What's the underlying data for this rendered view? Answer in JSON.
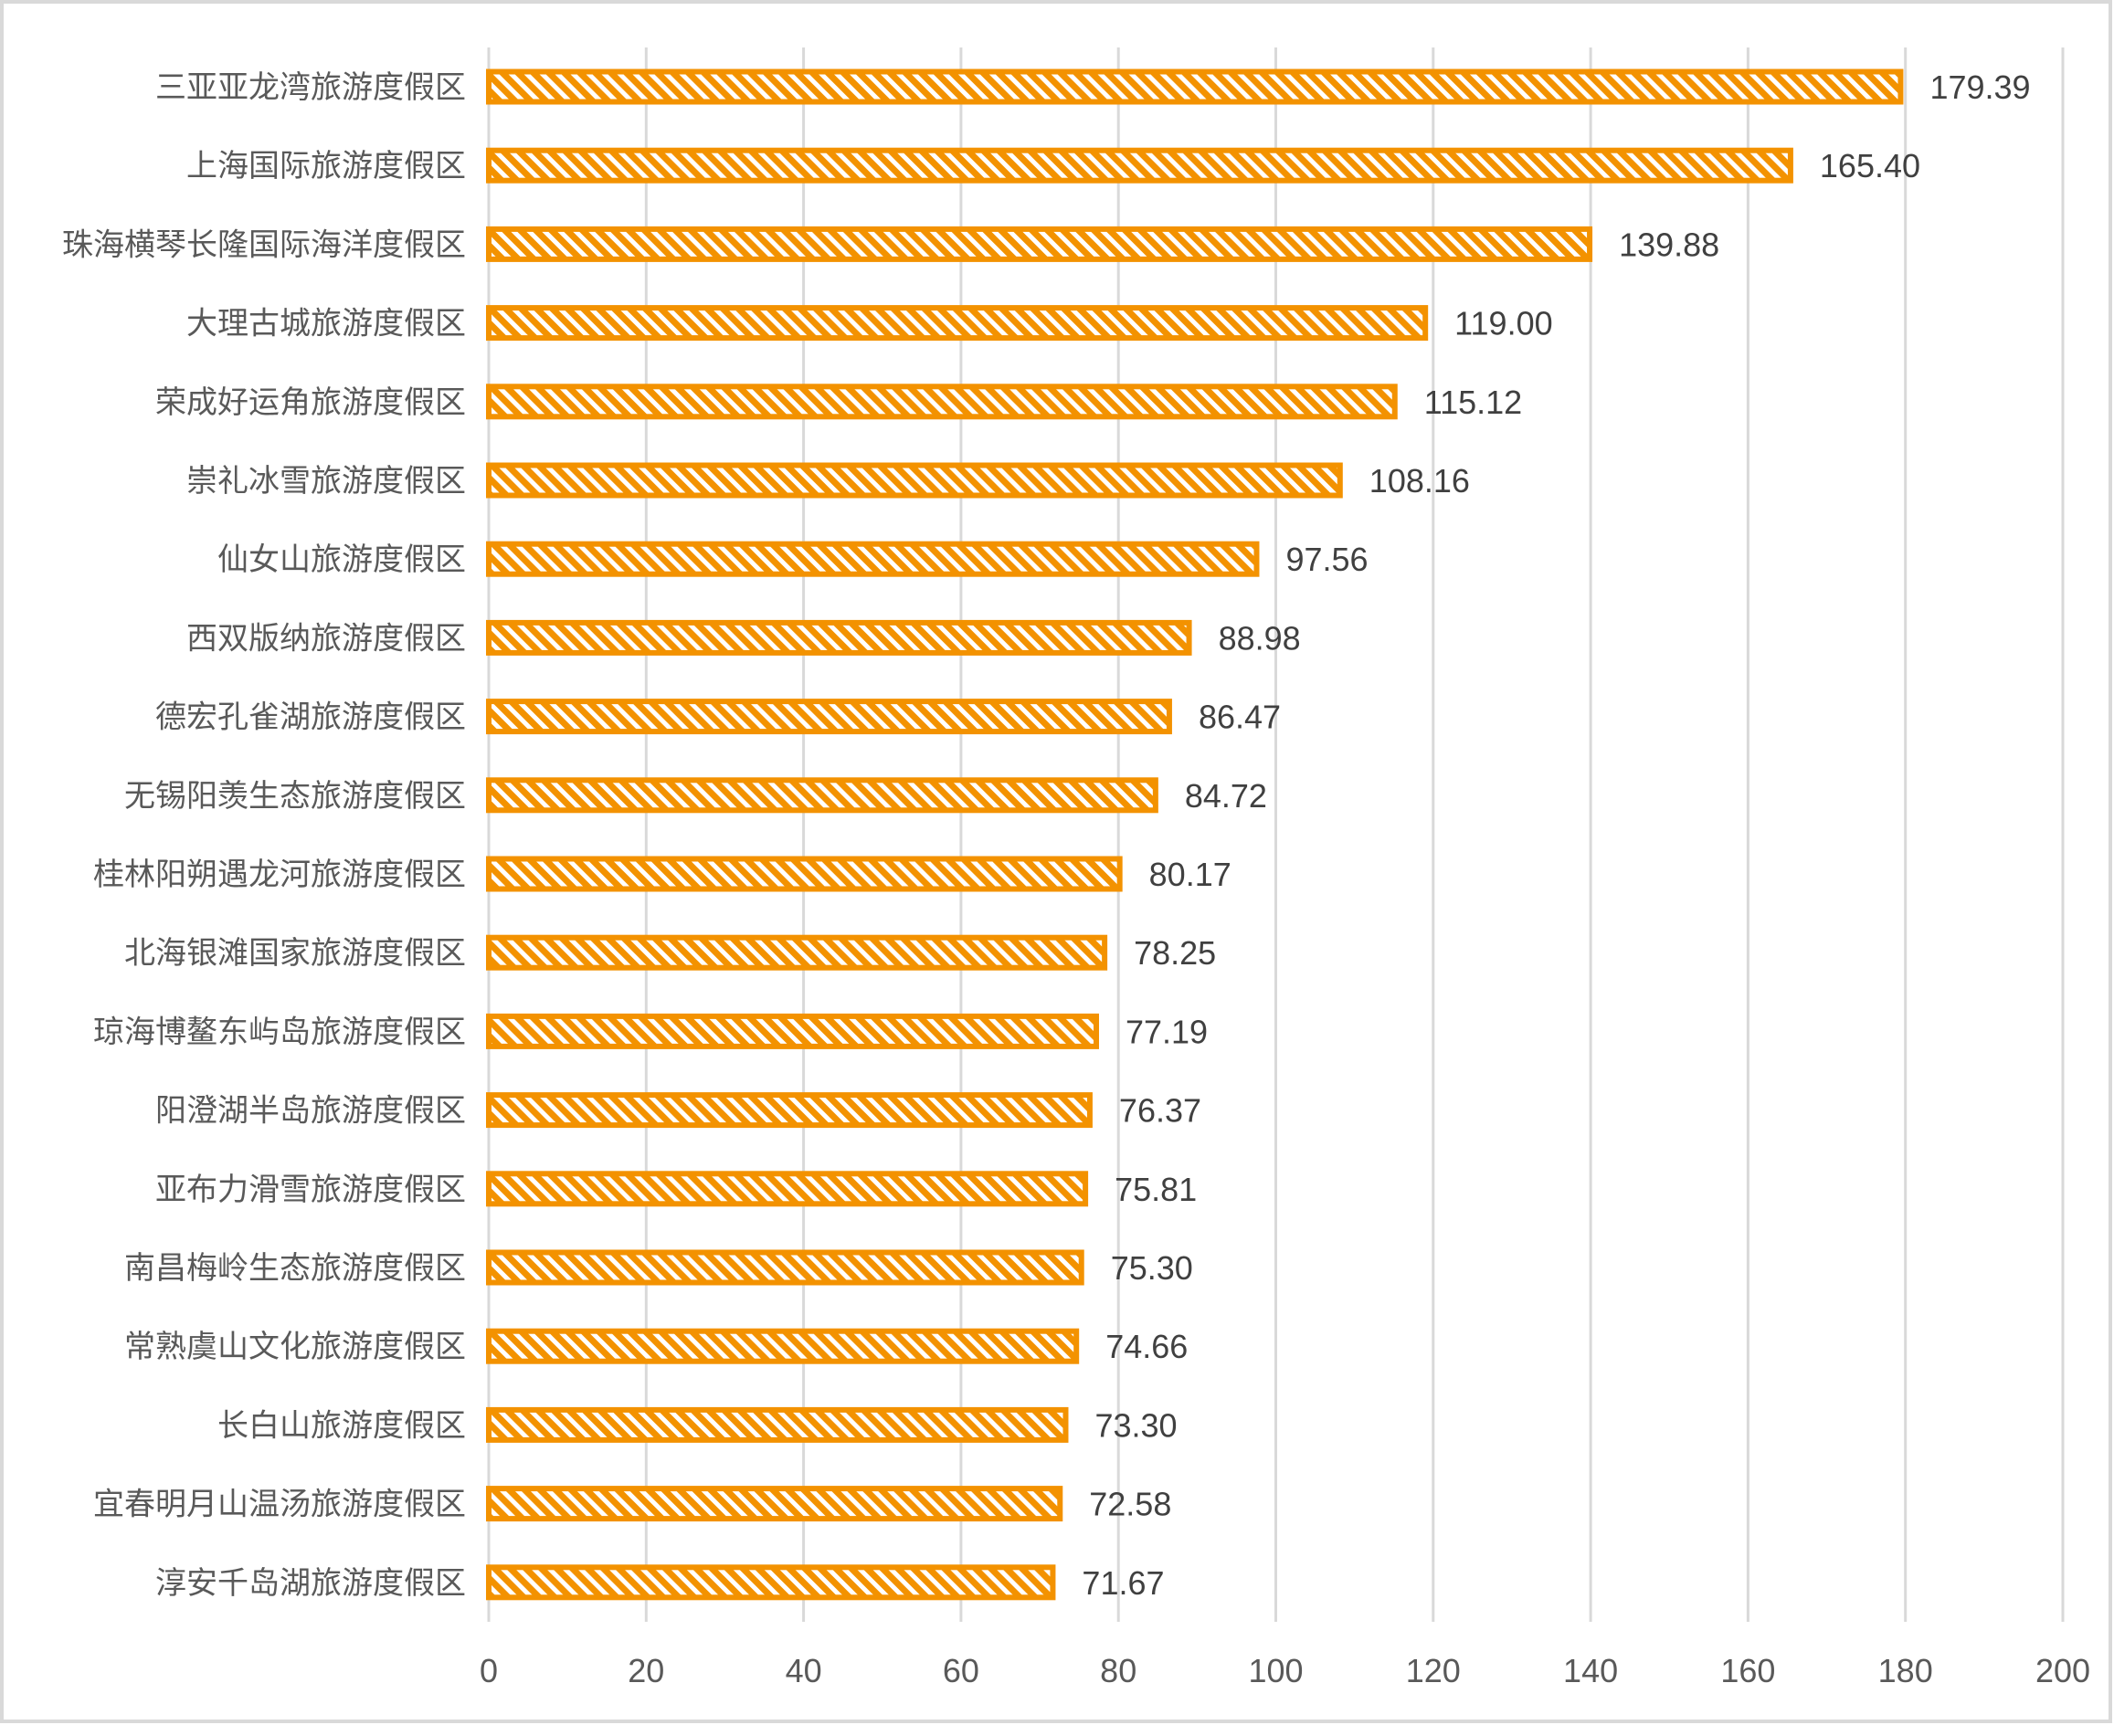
{
  "chart_data": {
    "type": "bar",
    "orientation": "horizontal",
    "categories": [
      "三亚亚龙湾旅游度假区",
      "上海国际旅游度假区",
      "珠海横琴长隆国际海洋度假区",
      "大理古城旅游度假区",
      "荣成好运角旅游度假区",
      "崇礼冰雪旅游度假区",
      "仙女山旅游度假区",
      "西双版纳旅游度假区",
      "德宏孔雀湖旅游度假区",
      "无锡阳羡生态旅游度假区",
      "桂林阳朔遇龙河旅游度假区",
      "北海银滩国家旅游度假区",
      "琼海博鳌东屿岛旅游度假区",
      "阳澄湖半岛旅游度假区",
      "亚布力滑雪旅游度假区",
      "南昌梅岭生态旅游度假区",
      "常熟虞山文化旅游度假区",
      "长白山旅游度假区",
      "宜春明月山温汤旅游度假区",
      "淳安千岛湖旅游度假区"
    ],
    "values": [
      179.39,
      165.4,
      139.88,
      119.0,
      115.12,
      108.16,
      97.56,
      88.98,
      86.47,
      84.72,
      80.17,
      78.25,
      77.19,
      76.37,
      75.81,
      75.3,
      74.66,
      73.3,
      72.58,
      71.67
    ],
    "data_labels": [
      "179.39",
      "165.40",
      "139.88",
      "119.00",
      "115.12",
      "108.16",
      "97.56",
      "88.98",
      "86.47",
      "84.72",
      "80.17",
      "78.25",
      "77.19",
      "76.37",
      "75.81",
      "75.30",
      "74.66",
      "73.30",
      "72.58",
      "71.67"
    ],
    "xlim": [
      0,
      200
    ],
    "x_ticks": [
      "0",
      "20",
      "40",
      "60",
      "80",
      "100",
      "120",
      "140",
      "160",
      "180",
      "200"
    ],
    "grid": "vertical",
    "bar_color": "#F39200",
    "bar_pattern": "diagonal-stripes-white",
    "title": "",
    "xlabel": "",
    "ylabel": ""
  }
}
